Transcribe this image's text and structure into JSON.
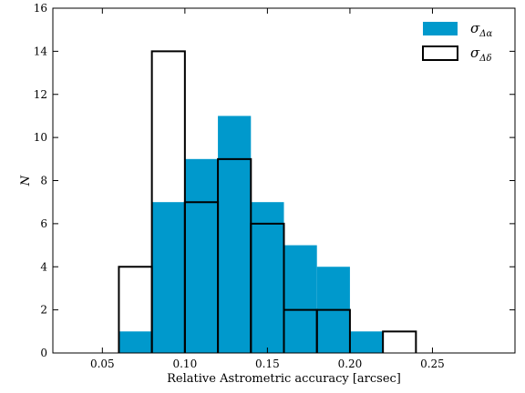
{
  "chart_data": {
    "type": "bar",
    "title": "",
    "xlabel": "Relative Astrometric accuracy [arcsec]",
    "ylabel": "N",
    "xlim": [
      0.02,
      0.3
    ],
    "ylim": [
      0,
      16
    ],
    "x_ticks": [
      0.05,
      0.1,
      0.15,
      0.2,
      0.25
    ],
    "x_tick_labels": [
      "0.05",
      "0.10",
      "0.15",
      "0.20",
      "0.25"
    ],
    "y_ticks": [
      0,
      2,
      4,
      6,
      8,
      10,
      12,
      14,
      16
    ],
    "y_tick_labels": [
      "0",
      "2",
      "4",
      "6",
      "8",
      "10",
      "12",
      "14",
      "16"
    ],
    "bin_edges": [
      0.06,
      0.08,
      0.1,
      0.12,
      0.14,
      0.16,
      0.18,
      0.2,
      0.22,
      0.24
    ],
    "grid": false,
    "legend_position": "top-right",
    "series": [
      {
        "name": "σΔα",
        "name_main": "σ",
        "name_sub": "Δα",
        "style": "filled",
        "color": "#0099cc",
        "counts": [
          1,
          7,
          9,
          11,
          7,
          5,
          4,
          1,
          0
        ]
      },
      {
        "name": "σΔδ",
        "name_main": "σ",
        "name_sub": "Δδ",
        "style": "step",
        "color": "#000000",
        "counts": [
          4,
          14,
          7,
          9,
          6,
          2,
          2,
          0,
          1
        ]
      }
    ]
  }
}
